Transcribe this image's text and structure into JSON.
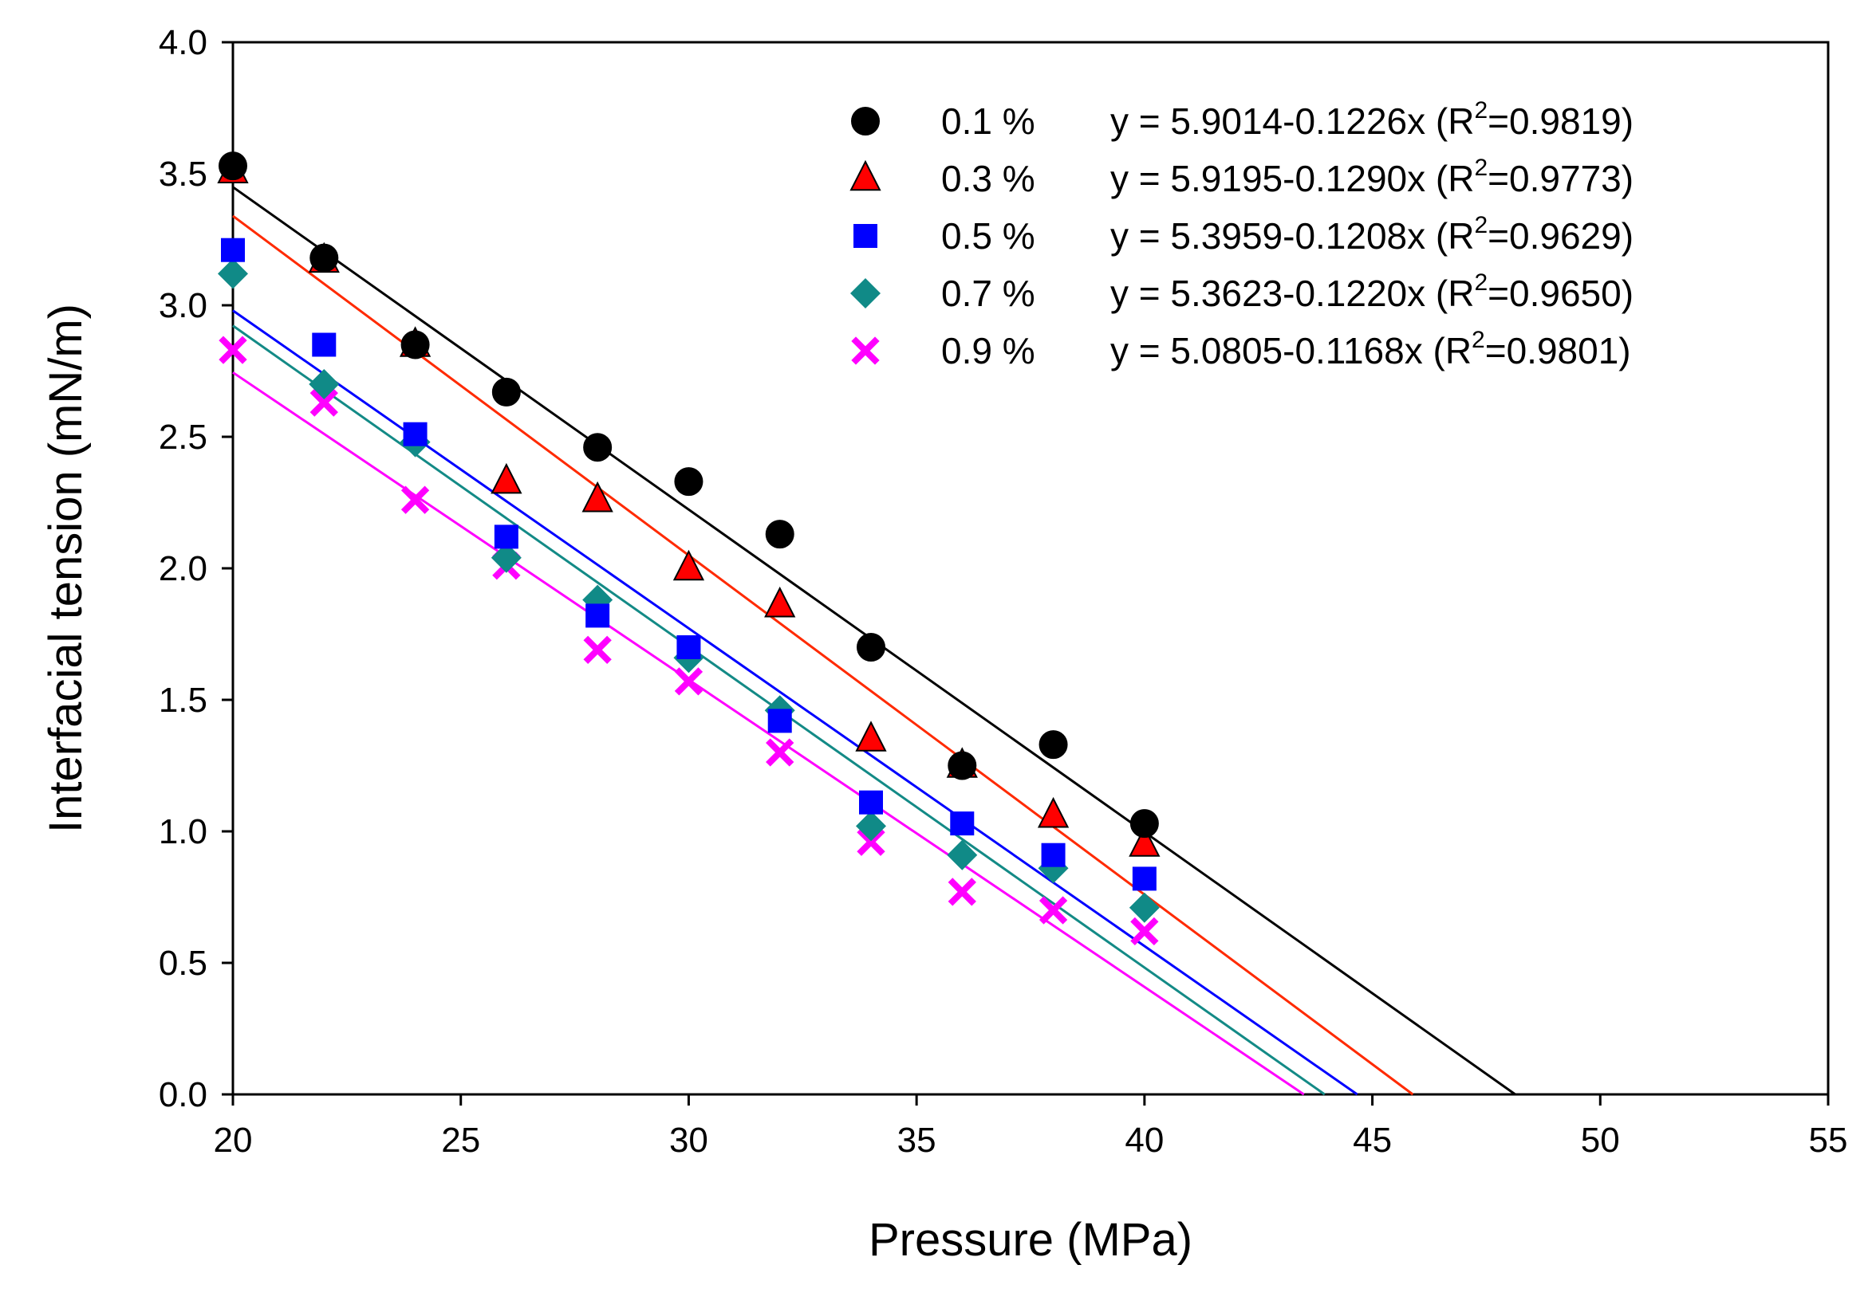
{
  "chart_data": {
    "type": "scatter",
    "title": "",
    "xlabel": "Pressure (MPa)",
    "ylabel": "Interfacial tension (mN/m)",
    "xlim": [
      20,
      55
    ],
    "ylim": [
      0.0,
      4.0
    ],
    "xticks": [
      "20",
      "25",
      "30",
      "35",
      "40",
      "45",
      "50",
      "55"
    ],
    "yticks": [
      "0.0",
      "0.5",
      "1.0",
      "1.5",
      "2.0",
      "2.5",
      "3.0",
      "3.5",
      "4.0"
    ],
    "legend_position": "top-right",
    "series": [
      {
        "name": "0.1 %",
        "marker": "circle",
        "color": "#000000",
        "line_color": "#000000",
        "x": [
          20,
          22,
          24,
          26,
          28,
          30,
          32,
          34,
          36,
          38,
          40
        ],
        "y": [
          3.53,
          3.18,
          2.85,
          2.67,
          2.46,
          2.33,
          2.13,
          1.7,
          1.25,
          1.33,
          1.03
        ],
        "fit": {
          "intercept": 5.9014,
          "slope": -0.1226
        },
        "equation_prefix": "y = 5.9014-0.1226x (R",
        "equation_sup": "2",
        "equation_suffix": "=0.9819)"
      },
      {
        "name": "0.3 %",
        "marker": "triangle",
        "color": "#ff0000",
        "line_color": "#ff2a00",
        "x": [
          20,
          22,
          24,
          26,
          28,
          30,
          32,
          34,
          36,
          38,
          40
        ],
        "y": [
          3.51,
          3.17,
          2.85,
          2.33,
          2.26,
          2.0,
          1.86,
          1.35,
          1.25,
          1.06,
          0.95
        ],
        "fit": {
          "intercept": 5.9195,
          "slope": -0.129
        },
        "equation_prefix": "y = 5.9195-0.1290x (R",
        "equation_sup": "2",
        "equation_suffix": "=0.9773)"
      },
      {
        "name": "0.5 %",
        "marker": "square",
        "color": "#0000ff",
        "line_color": "#0000ff",
        "x": [
          20,
          22,
          24,
          26,
          28,
          30,
          32,
          34,
          36,
          38,
          40
        ],
        "y": [
          3.21,
          2.85,
          2.51,
          2.12,
          1.82,
          1.7,
          1.42,
          1.11,
          1.03,
          0.91,
          0.82
        ],
        "fit": {
          "intercept": 5.3959,
          "slope": -0.1208
        },
        "equation_prefix": "y = 5.3959-0.1208x (R",
        "equation_sup": "2",
        "equation_suffix": "=0.9629)"
      },
      {
        "name": "0.7 %",
        "marker": "diamond",
        "color": "#108a87",
        "line_color": "#138a86",
        "x": [
          20,
          22,
          24,
          26,
          28,
          30,
          32,
          34,
          36,
          38,
          40
        ],
        "y": [
          3.12,
          2.7,
          2.48,
          2.04,
          1.88,
          1.66,
          1.46,
          1.02,
          0.91,
          0.86,
          0.71
        ],
        "fit": {
          "intercept": 5.3623,
          "slope": -0.122
        },
        "equation_prefix": "y = 5.3623-0.1220x (R",
        "equation_sup": "2",
        "equation_suffix": "=0.9650)"
      },
      {
        "name": "0.9 %",
        "marker": "x",
        "color": "#ff00ff",
        "line_color": "#ff00ff",
        "x": [
          20,
          22,
          24,
          26,
          28,
          30,
          32,
          34,
          36,
          38,
          40
        ],
        "y": [
          2.83,
          2.63,
          2.26,
          2.01,
          1.69,
          1.57,
          1.3,
          0.96,
          0.77,
          0.7,
          0.62
        ],
        "fit": {
          "intercept": 5.0805,
          "slope": -0.1168
        },
        "equation_prefix": "y = 5.0805-0.1168x (R",
        "equation_sup": "2",
        "equation_suffix": "=0.9801)"
      }
    ]
  }
}
